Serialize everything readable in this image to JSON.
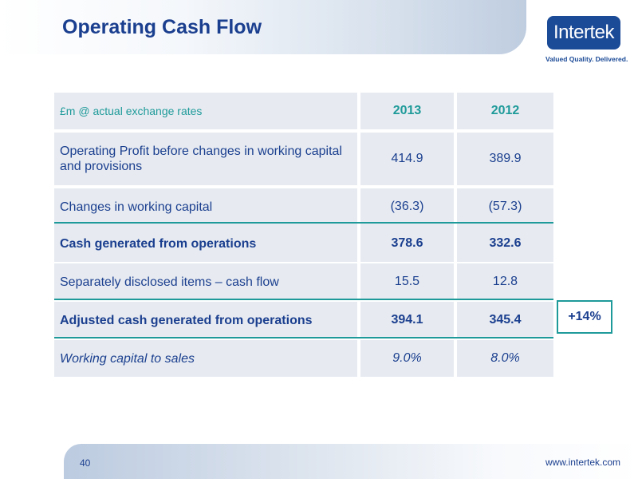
{
  "slide": {
    "title": "Operating Cash Flow",
    "page_number": "40",
    "url": "www.intertek.com"
  },
  "logo": {
    "name": "Intertek",
    "tagline": "Valued Quality. Delivered."
  },
  "colors": {
    "title_blue": "#1b3f8f",
    "teal": "#1f9a9a",
    "cell_bg": "#e7ebf1",
    "logo_blue": "#1b4a97"
  },
  "table": {
    "header": {
      "label": "£m @ actual exchange rates",
      "col_2013": "2013",
      "col_2012": "2012"
    },
    "rows": [
      {
        "label": "Operating Profit before changes in working capital and provisions",
        "v2013": "414.9",
        "v2012": "389.9"
      },
      {
        "label": "Changes in working capital",
        "v2013": "(36.3)",
        "v2012": "(57.3)"
      },
      {
        "label": "Cash generated from operations",
        "v2013": "378.6",
        "v2012": "332.6"
      },
      {
        "label": "Separately disclosed items – cash flow",
        "v2013": "15.5",
        "v2012": "12.8"
      },
      {
        "label": "Adjusted cash generated from operations",
        "v2013": "394.1",
        "v2012": "345.4"
      },
      {
        "label": "Working capital to sales",
        "v2013": "9.0%",
        "v2012": "8.0%"
      }
    ],
    "growth": "+14%"
  }
}
